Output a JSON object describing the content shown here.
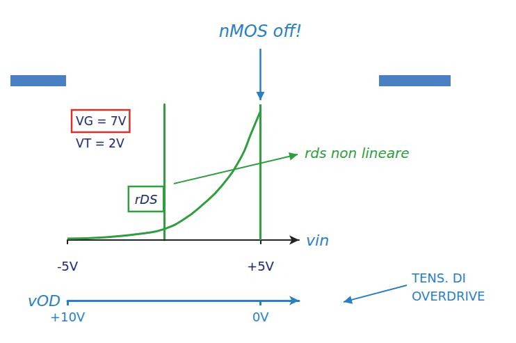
{
  "chart_data": {
    "type": "line",
    "x": [
      -5,
      -3,
      -1,
      0,
      1,
      2,
      3,
      4,
      4.5,
      5
    ],
    "series": [
      {
        "name": "rDS",
        "color": "#2e9e3e",
        "values": [
          0.1,
          0.2,
          0.5,
          0.8,
          1.5,
          2.6,
          4.0,
          6.1,
          7.8,
          9.5
        ]
      }
    ],
    "xlim": [
      -5,
      7
    ],
    "xticks": [
      {
        "value": -5,
        "label": "-5V"
      },
      {
        "value": 5,
        "label": "+5V"
      }
    ],
    "xlabel": "vin",
    "ylim": [
      0,
      10
    ],
    "yticks": [],
    "tick_labels": "x",
    "grid": false,
    "x2lim": [
      10,
      -2
    ],
    "x2ticks": [
      {
        "value": 10,
        "label": "+10V"
      },
      {
        "value": 0,
        "label": "0V"
      }
    ],
    "x2label": "vOD",
    "cutoff_x": 5,
    "annotations": {
      "off": "nMOS off!",
      "params": [
        "VG = 7V",
        "VT = 2V"
      ],
      "curve_note": "rds non lineare",
      "vod_note": "TENS. DI OVERDRIVE"
    }
  }
}
